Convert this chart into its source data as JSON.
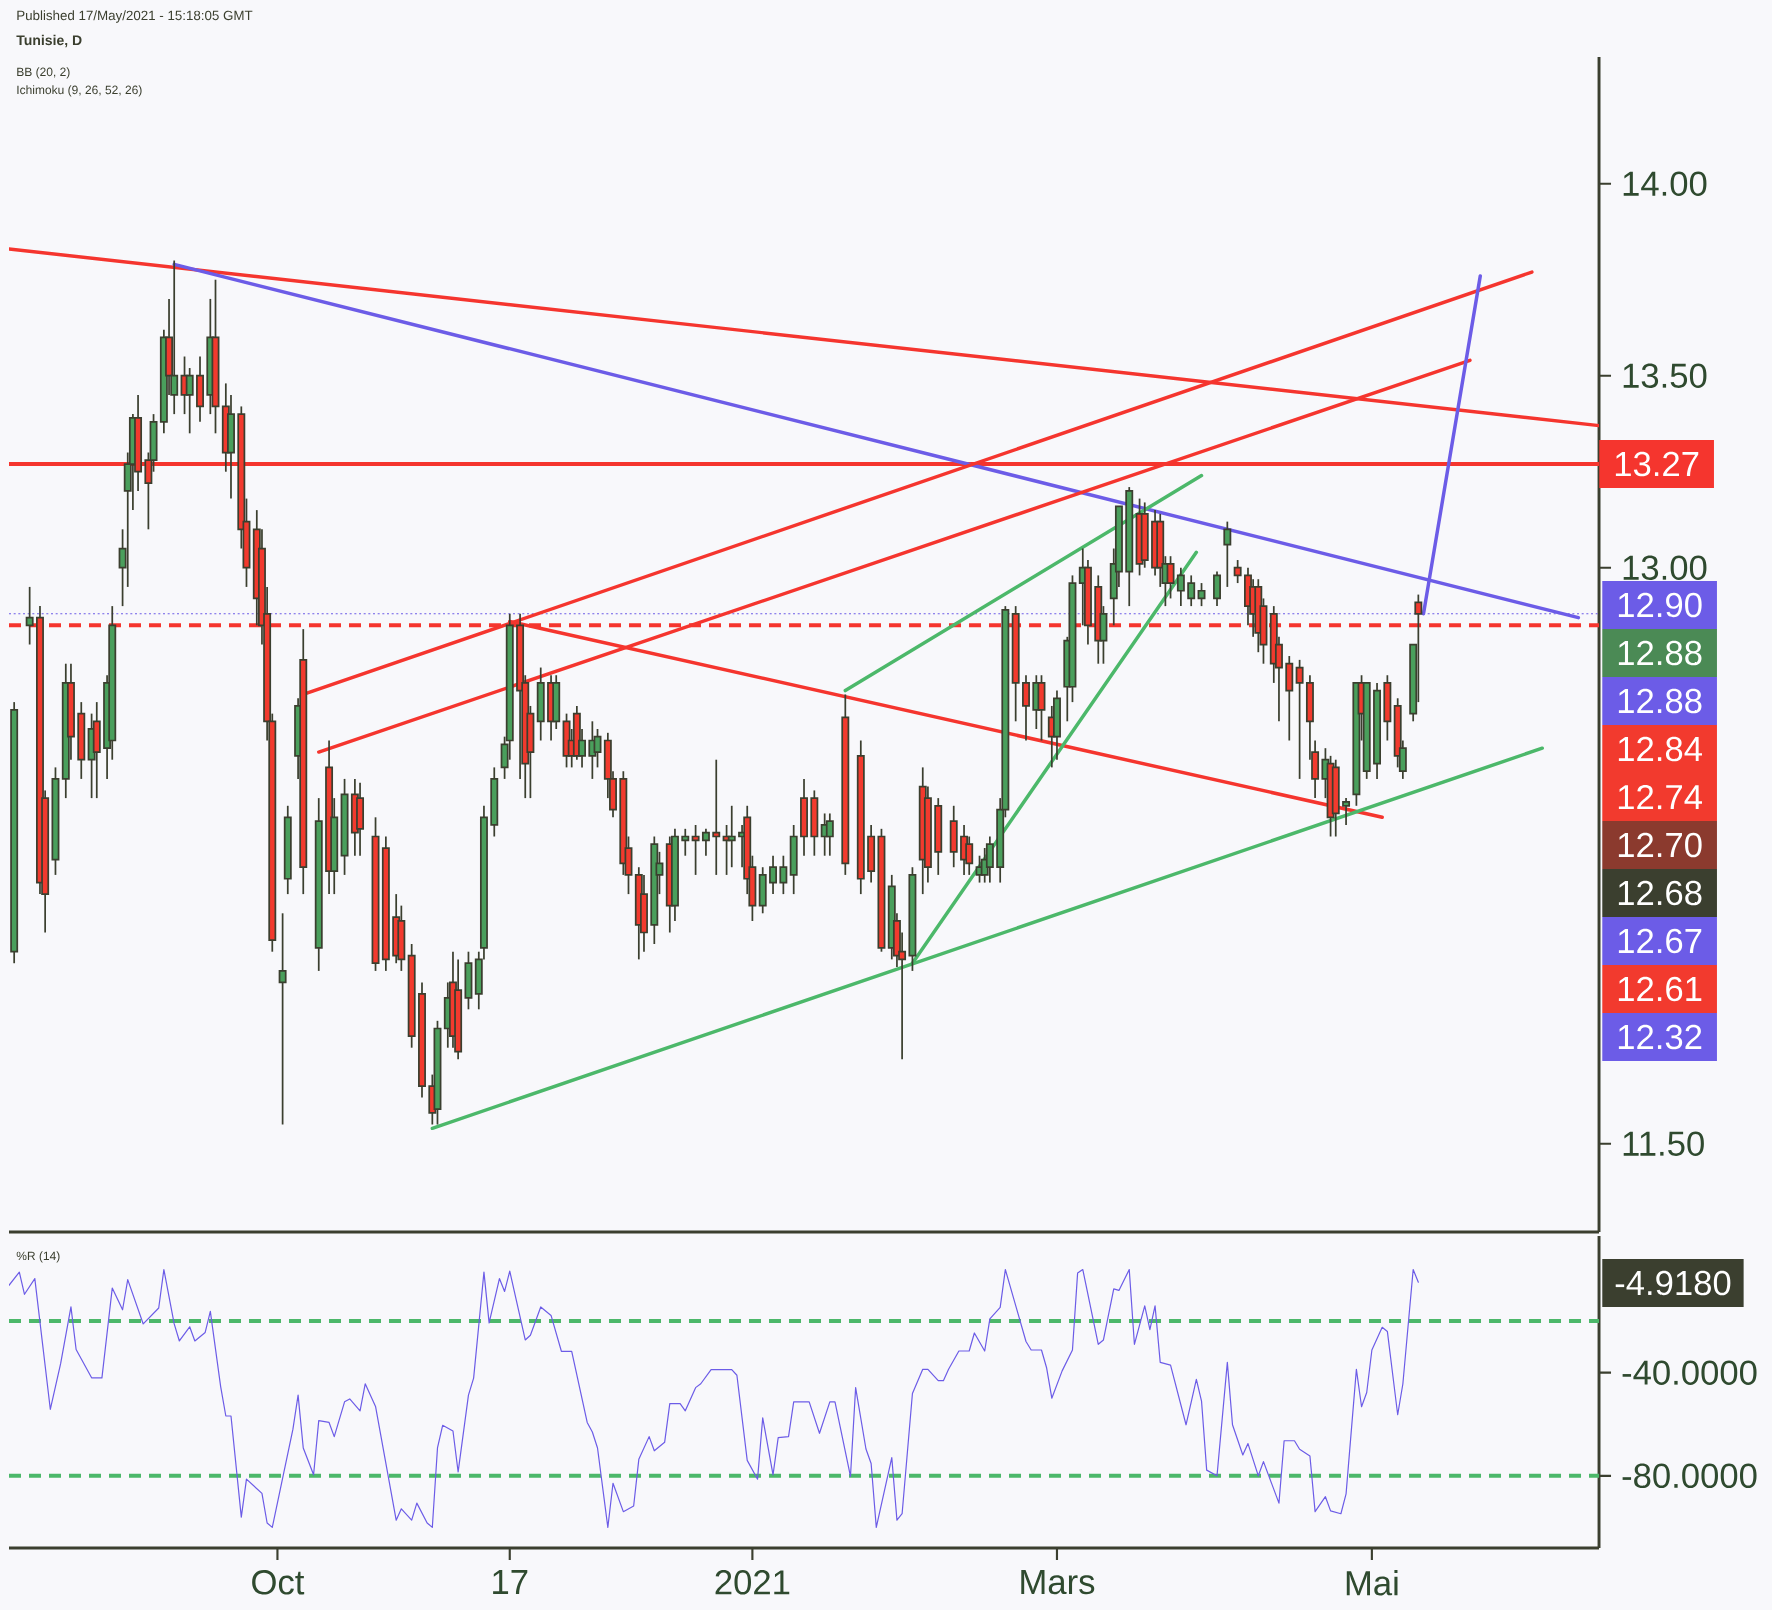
{
  "chart_data": [
    {
      "type": "candlestick",
      "title": "Tunisie, D",
      "annotations": [
        "Published 17/May/2021 - 15:18:05 GMT",
        "BB (20, 2)",
        "Ichimoku (9, 26, 52, 26)",
        "12.90",
        "12.88",
        "12.88",
        "12.84",
        "12.74",
        "12.70",
        "12.68",
        "12.67",
        "12.61",
        "12.32"
      ],
      "x": [
        "2020-08-11",
        "2020-08-14",
        "2020-08-16",
        "2020-08-17",
        "2020-08-19",
        "2020-08-21",
        "2020-08-22",
        "2020-08-24",
        "2020-08-26",
        "2020-08-27",
        "2020-08-29",
        "2020-08-30",
        "2020-09-01",
        "2020-09-02",
        "2020-09-03",
        "2020-09-04",
        "2020-09-06",
        "2020-09-07",
        "2020-09-09",
        "2020-09-10",
        "2020-09-11",
        "2020-09-13",
        "2020-09-14",
        "2020-09-16",
        "2020-09-18",
        "2020-09-19",
        "2020-09-21",
        "2020-09-22",
        "2020-09-24",
        "2020-09-25",
        "2020-09-27",
        "2020-09-28",
        "2020-09-29",
        "2020-09-30",
        "2020-10-02",
        "2020-10-03",
        "2020-10-05",
        "2020-10-06",
        "2020-10-09",
        "2020-10-11",
        "2020-10-12",
        "2020-10-14",
        "2020-10-16",
        "2020-10-17",
        "2020-10-20",
        "2020-10-22",
        "2020-10-24",
        "2020-10-25",
        "2020-10-27",
        "2020-10-29",
        "2020-10-31",
        "2020-11-01",
        "2020-11-03",
        "2020-11-04",
        "2020-11-05",
        "2020-11-07",
        "2020-11-09",
        "2020-11-10",
        "2020-11-12",
        "2020-11-14",
        "2020-11-15",
        "2020-11-17",
        "2020-11-18",
        "2020-11-19",
        "2020-11-21",
        "2020-11-23",
        "2020-11-24",
        "2020-11-26",
        "2020-11-27",
        "2020-11-28",
        "2020-11-29",
        "2020-12-01",
        "2020-12-02",
        "2020-12-04",
        "2020-12-05",
        "2020-12-07",
        "2020-12-08",
        "2020-12-10",
        "2020-12-11",
        "2020-12-13",
        "2020-12-14",
        "2020-12-16",
        "2020-12-17",
        "2020-12-19",
        "2020-12-21",
        "2020-12-23",
        "2020-12-25",
        "2020-12-27",
        "2020-12-28",
        "2020-12-30",
        "2020-12-31",
        "2021-01-01",
        "2021-01-03",
        "2021-01-05",
        "2021-01-07",
        "2021-01-09",
        "2021-01-11",
        "2021-01-13",
        "2021-01-15",
        "2021-01-16",
        "2021-01-19",
        "2021-01-22",
        "2021-01-24",
        "2021-01-26",
        "2021-01-28",
        "2021-01-29",
        "2021-01-30",
        "2021-02-01",
        "2021-02-03",
        "2021-02-04",
        "2021-02-06",
        "2021-02-09",
        "2021-02-11",
        "2021-02-12",
        "2021-02-14",
        "2021-02-15",
        "2021-02-16",
        "2021-02-18",
        "2021-02-19",
        "2021-02-21",
        "2021-02-23",
        "2021-02-25",
        "2021-02-26",
        "2021-02-28",
        "2021-03-01",
        "2021-03-03",
        "2021-03-04",
        "2021-03-06",
        "2021-03-07",
        "2021-03-09",
        "2021-03-10",
        "2021-03-12",
        "2021-03-13",
        "2021-03-15",
        "2021-03-17",
        "2021-03-18",
        "2021-03-20",
        "2021-03-21",
        "2021-03-22",
        "2021-03-23",
        "2021-03-25",
        "2021-03-27",
        "2021-03-29",
        "2021-04-01",
        "2021-04-03",
        "2021-04-05",
        "2021-04-07",
        "2021-04-08",
        "2021-04-09",
        "2021-04-10",
        "2021-04-12",
        "2021-04-13",
        "2021-04-15",
        "2021-04-17",
        "2021-04-19",
        "2021-04-20",
        "2021-04-22",
        "2021-04-23",
        "2021-04-24",
        "2021-04-26",
        "2021-04-28",
        "2021-04-29",
        "2021-04-30",
        "2021-05-02",
        "2021-05-04",
        "2021-05-06",
        "2021-05-07",
        "2021-05-09",
        "2021-05-10"
      ],
      "ohlc": [
        [
          12.0,
          12.65,
          11.97,
          12.63
        ],
        [
          12.85,
          12.95,
          12.8,
          12.87
        ],
        [
          12.87,
          12.9,
          12.15,
          12.18
        ],
        [
          12.4,
          12.42,
          12.05,
          12.15
        ],
        [
          12.24,
          12.48,
          12.2,
          12.45
        ],
        [
          12.45,
          12.75,
          12.4,
          12.7
        ],
        [
          12.7,
          12.75,
          12.5,
          12.56
        ],
        [
          12.62,
          12.65,
          12.45,
          12.5
        ],
        [
          12.5,
          12.62,
          12.4,
          12.58
        ],
        [
          12.6,
          12.65,
          12.4,
          12.52
        ],
        [
          12.53,
          12.72,
          12.45,
          12.7
        ],
        [
          12.55,
          12.9,
          12.5,
          12.85
        ],
        [
          13.0,
          13.1,
          12.9,
          13.05
        ],
        [
          13.2,
          13.3,
          12.95,
          13.27
        ],
        [
          13.27,
          13.4,
          13.15,
          13.39
        ],
        [
          13.39,
          13.45,
          13.2,
          13.25
        ],
        [
          13.28,
          13.3,
          13.1,
          13.22
        ],
        [
          13.28,
          13.4,
          13.25,
          13.38
        ],
        [
          13.38,
          13.62,
          13.35,
          13.6
        ],
        [
          13.6,
          13.7,
          13.45,
          13.5
        ],
        [
          13.45,
          13.8,
          13.4,
          13.5
        ],
        [
          13.5,
          13.55,
          13.4,
          13.45
        ],
        [
          13.45,
          13.52,
          13.35,
          13.5
        ],
        [
          13.5,
          13.55,
          13.38,
          13.42
        ],
        [
          13.45,
          13.7,
          13.4,
          13.6
        ],
        [
          13.6,
          13.75,
          13.35,
          13.42
        ],
        [
          13.42,
          13.48,
          13.25,
          13.3
        ],
        [
          13.3,
          13.45,
          13.18,
          13.4
        ],
        [
          13.4,
          13.42,
          13.05,
          13.1
        ],
        [
          13.12,
          13.18,
          12.95,
          13.0
        ],
        [
          13.1,
          13.15,
          12.85,
          12.92
        ],
        [
          13.05,
          13.1,
          12.8,
          12.85
        ],
        [
          12.88,
          12.95,
          12.55,
          12.6
        ],
        [
          12.6,
          12.62,
          12.0,
          12.03
        ],
        [
          11.92,
          12.1,
          11.55,
          11.95
        ],
        [
          12.19,
          12.38,
          12.15,
          12.35
        ],
        [
          12.51,
          12.66,
          12.45,
          12.64
        ],
        [
          12.76,
          12.84,
          12.15,
          12.22
        ],
        [
          12.01,
          12.4,
          11.95,
          12.34
        ],
        [
          12.48,
          12.55,
          12.15,
          12.21
        ],
        [
          12.21,
          12.4,
          12.15,
          12.35
        ],
        [
          12.25,
          12.45,
          12.2,
          12.41
        ],
        [
          12.41,
          12.45,
          12.25,
          12.31
        ],
        [
          12.4,
          12.44,
          12.25,
          12.32
        ],
        [
          12.3,
          12.35,
          11.95,
          11.97
        ],
        [
          12.27,
          12.3,
          11.95,
          11.98
        ],
        [
          12.09,
          12.15,
          11.97,
          11.99
        ],
        [
          12.08,
          12.12,
          11.95,
          11.98
        ],
        [
          11.99,
          12.02,
          11.75,
          11.78
        ],
        [
          11.89,
          11.92,
          11.62,
          11.65
        ],
        [
          11.65,
          11.68,
          11.55,
          11.58
        ],
        [
          11.59,
          11.82,
          11.55,
          11.8
        ],
        [
          11.8,
          11.92,
          11.75,
          11.88
        ],
        [
          11.92,
          12.0,
          11.75,
          11.78
        ],
        [
          11.9,
          11.98,
          11.72,
          11.74
        ],
        [
          11.88,
          12.0,
          11.85,
          11.97
        ],
        [
          11.89,
          12.0,
          11.85,
          11.98
        ],
        [
          12.01,
          12.38,
          11.98,
          12.35
        ],
        [
          12.33,
          12.48,
          12.3,
          12.45
        ],
        [
          12.48,
          12.56,
          12.45,
          12.54
        ],
        [
          12.55,
          12.88,
          12.5,
          12.85
        ],
        [
          12.85,
          12.88,
          12.45,
          12.68
        ],
        [
          12.7,
          12.72,
          12.4,
          12.49
        ],
        [
          12.62,
          12.64,
          12.4,
          12.52
        ],
        [
          12.6,
          12.74,
          12.55,
          12.7
        ],
        [
          12.7,
          12.72,
          12.55,
          12.6
        ],
        [
          12.6,
          12.72,
          12.58,
          12.7
        ],
        [
          12.6,
          12.62,
          12.48,
          12.51
        ],
        [
          12.55,
          12.58,
          12.48,
          12.51
        ],
        [
          12.62,
          12.64,
          12.5,
          12.51
        ],
        [
          12.51,
          12.58,
          12.48,
          12.55
        ],
        [
          12.51,
          12.6,
          12.45,
          12.55
        ],
        [
          12.52,
          12.58,
          12.48,
          12.56
        ],
        [
          12.55,
          12.57,
          12.4,
          12.45
        ],
        [
          12.45,
          12.47,
          12.35,
          12.37
        ],
        [
          12.45,
          12.47,
          12.2,
          12.23
        ],
        [
          12.27,
          12.3,
          12.15,
          12.2
        ],
        [
          12.2,
          12.22,
          11.98,
          12.07
        ],
        [
          12.15,
          12.2,
          12.0,
          12.05
        ],
        [
          12.07,
          12.3,
          12.02,
          12.28
        ],
        [
          12.2,
          12.26,
          12.15,
          12.23
        ],
        [
          12.28,
          12.3,
          12.05,
          12.12
        ],
        [
          12.12,
          12.32,
          12.08,
          12.3
        ],
        [
          12.29,
          12.32,
          12.25,
          12.3
        ],
        [
          12.3,
          12.33,
          12.2,
          12.29
        ],
        [
          12.29,
          12.32,
          12.25,
          12.31
        ],
        [
          12.31,
          12.5,
          12.2,
          12.3
        ],
        [
          12.3,
          12.33,
          12.2,
          12.29
        ],
        [
          12.29,
          12.38,
          12.22,
          12.3
        ],
        [
          12.3,
          12.33,
          12.22,
          12.31
        ],
        [
          12.35,
          12.38,
          12.15,
          12.19
        ],
        [
          12.22,
          12.25,
          12.08,
          12.12
        ],
        [
          12.12,
          12.22,
          12.1,
          12.2
        ],
        [
          12.18,
          12.25,
          12.15,
          12.22
        ],
        [
          12.18,
          12.25,
          12.15,
          12.22
        ],
        [
          12.2,
          12.33,
          12.15,
          12.3
        ],
        [
          12.4,
          12.45,
          12.25,
          12.3
        ],
        [
          12.4,
          12.42,
          12.25,
          12.3
        ],
        [
          12.3,
          12.36,
          12.25,
          12.33
        ],
        [
          12.3,
          12.36,
          12.25,
          12.34
        ],
        [
          12.61,
          12.67,
          12.2,
          12.23
        ],
        [
          12.51,
          12.55,
          12.15,
          12.19
        ],
        [
          12.3,
          12.33,
          12.18,
          12.21
        ],
        [
          12.3,
          12.32,
          12.0,
          12.01
        ],
        [
          12.01,
          12.2,
          11.98,
          12.17
        ],
        [
          12.08,
          12.1,
          11.96,
          11.99
        ],
        [
          12.0,
          12.05,
          11.72,
          11.98
        ],
        [
          11.99,
          12.22,
          11.95,
          12.2
        ],
        [
          12.43,
          12.48,
          12.15,
          12.24
        ],
        [
          12.4,
          12.43,
          12.18,
          12.22
        ],
        [
          12.38,
          12.4,
          12.2,
          12.26
        ],
        [
          12.34,
          12.38,
          12.22,
          12.26
        ],
        [
          12.3,
          12.33,
          12.2,
          12.24
        ],
        [
          12.28,
          12.3,
          12.2,
          12.23
        ],
        [
          12.2,
          12.25,
          12.18,
          12.22
        ],
        [
          12.2,
          12.27,
          12.18,
          12.24
        ],
        [
          12.22,
          12.3,
          12.18,
          12.28
        ],
        [
          12.22,
          12.4,
          12.18,
          12.37
        ],
        [
          12.37,
          12.9,
          12.35,
          12.89
        ],
        [
          12.88,
          12.9,
          12.6,
          12.7
        ],
        [
          12.7,
          12.72,
          12.55,
          12.64
        ],
        [
          12.63,
          12.72,
          12.58,
          12.7
        ],
        [
          12.7,
          12.72,
          12.55,
          12.63
        ],
        [
          12.61,
          12.64,
          12.48,
          12.56
        ],
        [
          12.56,
          12.68,
          12.5,
          12.66
        ],
        [
          12.69,
          12.82,
          12.6,
          12.81
        ],
        [
          12.69,
          12.98,
          12.65,
          12.96
        ],
        [
          12.96,
          13.05,
          12.85,
          13.0
        ],
        [
          13.0,
          13.02,
          12.8,
          12.85
        ],
        [
          12.95,
          12.98,
          12.75,
          12.81
        ],
        [
          12.81,
          12.9,
          12.75,
          12.88
        ],
        [
          12.92,
          13.05,
          12.85,
          13.01
        ],
        [
          12.99,
          13.16,
          12.95,
          13.16
        ],
        [
          12.99,
          13.21,
          12.9,
          13.2
        ],
        [
          13.14,
          13.18,
          12.98,
          13.01
        ],
        [
          13.14,
          13.17,
          13.0,
          13.02
        ],
        [
          13.12,
          13.15,
          12.98,
          13.0
        ],
        [
          13.12,
          13.14,
          12.95,
          13.0
        ],
        [
          12.96,
          13.03,
          12.9,
          13.01
        ],
        [
          13.01,
          13.03,
          12.92,
          12.96
        ],
        [
          12.94,
          13.0,
          12.9,
          12.98
        ],
        [
          12.92,
          12.98,
          12.9,
          12.96
        ],
        [
          12.92,
          12.96,
          12.9,
          12.94
        ],
        [
          12.92,
          12.99,
          12.9,
          12.98
        ],
        [
          13.06,
          13.12,
          12.95,
          13.1
        ],
        [
          13.0,
          13.02,
          12.96,
          12.98
        ],
        [
          12.98,
          13.0,
          12.85,
          12.9
        ],
        [
          12.95,
          12.97,
          12.82,
          12.88
        ],
        [
          12.95,
          12.97,
          12.78,
          12.83
        ],
        [
          12.9,
          12.92,
          12.75,
          12.8
        ],
        [
          12.88,
          12.9,
          12.7,
          12.75
        ],
        [
          12.8,
          12.82,
          12.6,
          12.74
        ],
        [
          12.75,
          12.77,
          12.55,
          12.68
        ],
        [
          12.74,
          12.76,
          12.45,
          12.7
        ],
        [
          12.7,
          12.72,
          12.5,
          12.6
        ],
        [
          12.52,
          12.55,
          12.4,
          12.45
        ],
        [
          12.45,
          12.53,
          12.4,
          12.5
        ],
        [
          12.49,
          12.51,
          12.3,
          12.35
        ],
        [
          12.48,
          12.5,
          12.3,
          12.36
        ],
        [
          12.38,
          12.4,
          12.33,
          12.39
        ],
        [
          12.41,
          12.7,
          12.38,
          12.7
        ],
        [
          12.7,
          12.72,
          12.55,
          12.62
        ],
        [
          12.47,
          12.7,
          12.45,
          12.7
        ],
        [
          12.49,
          12.7,
          12.45,
          12.68
        ],
        [
          12.7,
          12.72,
          12.55,
          12.6
        ],
        [
          12.64,
          12.66,
          12.48,
          12.51
        ],
        [
          12.47,
          12.55,
          12.45,
          12.53
        ],
        [
          12.62,
          12.8,
          12.6,
          12.8
        ],
        [
          12.91,
          12.93,
          12.65,
          12.88
        ]
      ],
      "series": [
        {
          "type": "line",
          "x": [
            "2020-08-10",
            "2021-06-14"
          ],
          "values": [
            13.83,
            13.37
          ],
          "color": "#f5352e"
        },
        {
          "type": "line",
          "x": [
            "2020-09-11",
            "2021-06-10"
          ],
          "values": [
            13.79,
            12.87
          ],
          "color": "#6c5ce7"
        },
        {
          "type": "line",
          "x": [
            "2020-10-06",
            "2021-06-01"
          ],
          "values": [
            12.67,
            13.77
          ],
          "color": "#f5352e"
        },
        {
          "type": "line",
          "x": [
            "2020-10-09",
            "2021-05-20"
          ],
          "values": [
            12.52,
            13.54
          ],
          "color": "#f5352e"
        },
        {
          "type": "line",
          "x": [
            "2020-11-15",
            "2021-05-03"
          ],
          "values": [
            12.86,
            12.35
          ],
          "color": "#f5352e"
        },
        {
          "type": "line",
          "x": [
            "2020-10-31",
            "2021-06-03"
          ],
          "values": [
            11.54,
            12.53
          ],
          "color": "#4cb86a"
        },
        {
          "type": "line",
          "x": [
            "2021-01-19",
            "2021-03-29"
          ],
          "values": [
            12.68,
            13.24
          ],
          "color": "#4cb86a"
        },
        {
          "type": "line",
          "x": [
            "2021-02-01",
            "2021-03-28"
          ],
          "values": [
            11.97,
            13.04
          ],
          "color": "#4cb86a"
        },
        {
          "type": "line",
          "x": [
            "2021-05-11",
            "2021-05-22"
          ],
          "values": [
            12.88,
            13.76
          ],
          "color": "#6c5ce7"
        }
      ],
      "ref_lines": [
        {
          "axis": "y",
          "value": 13.27,
          "label": "13.27",
          "color": "#f5352e",
          "line_style": "solid"
        },
        {
          "axis": "y",
          "value": 12.85,
          "color": "#f5352e",
          "line_style": "dashed"
        },
        {
          "axis": "y",
          "value": 12.88,
          "color": "#6c5ce7",
          "line_style": "dotted"
        }
      ],
      "xlim": [
        "2020-08-10",
        "2021-06-14"
      ],
      "ylim": [
        11.27,
        14.33
      ],
      "yticks": [
        {
          "value": 14,
          "label": "14.00"
        },
        {
          "value": 13.5,
          "label": "13.50"
        },
        {
          "value": 13,
          "label": "13.00"
        },
        {
          "value": 11.5,
          "label": "11.50"
        }
      ],
      "tick_labels": "y"
    },
    {
      "type": "line",
      "annotations": [
        "%R (14)",
        "-4.9180"
      ],
      "color": "#6c5ce7",
      "x": [
        "2020-08-10",
        "2020-08-12",
        "2020-08-13",
        "2020-08-15",
        "2020-08-18",
        "2020-08-20",
        "2020-08-22",
        "2020-08-23",
        "2020-08-26",
        "2020-08-28",
        "2020-08-30",
        "2020-09-01",
        "2020-09-02",
        "2020-09-05",
        "2020-09-08",
        "2020-09-09",
        "2020-09-11",
        "2020-09-12",
        "2020-09-14",
        "2020-09-15",
        "2020-09-17",
        "2020-09-18",
        "2020-09-20",
        "2020-09-21",
        "2020-09-22",
        "2020-09-24",
        "2020-09-25",
        "2020-09-28",
        "2020-09-29",
        "2020-09-30",
        "2020-10-04",
        "2020-10-05",
        "2020-10-06",
        "2020-10-08",
        "2020-10-09",
        "2020-10-11",
        "2020-10-12",
        "2020-10-14",
        "2020-10-15",
        "2020-10-17",
        "2020-10-18",
        "2020-10-20",
        "2020-10-24",
        "2020-10-25",
        "2020-10-27",
        "2020-10-28",
        "2020-10-30",
        "2020-10-31",
        "2020-11-01",
        "2020-11-02",
        "2020-11-04",
        "2020-11-05",
        "2020-11-07",
        "2020-11-08",
        "2020-11-10",
        "2020-11-11",
        "2020-11-13",
        "2020-11-14",
        "2020-11-15",
        "2020-11-18",
        "2020-11-19",
        "2020-11-21",
        "2020-11-23",
        "2020-11-25",
        "2020-11-27",
        "2020-11-30",
        "2020-12-01",
        "2020-12-02",
        "2020-12-04",
        "2020-12-05",
        "2020-12-07",
        "2020-12-09",
        "2020-12-10",
        "2020-12-12",
        "2020-12-13",
        "2020-12-15",
        "2020-12-16",
        "2020-12-18",
        "2020-12-19",
        "2020-12-21",
        "2020-12-22",
        "2020-12-24",
        "2020-12-28",
        "2020-12-29",
        "2020-12-31",
        "2021-01-02",
        "2021-01-03",
        "2021-01-05",
        "2021-01-06",
        "2021-01-08",
        "2021-01-09",
        "2021-01-12",
        "2021-01-14",
        "2021-01-16",
        "2021-01-17",
        "2021-01-20",
        "2021-01-21",
        "2021-01-23",
        "2021-01-24",
        "2021-01-25",
        "2021-01-28",
        "2021-01-29",
        "2021-01-30",
        "2021-02-01",
        "2021-02-03",
        "2021-02-04",
        "2021-02-06",
        "2021-02-07",
        "2021-02-08",
        "2021-02-10",
        "2021-02-12",
        "2021-02-13",
        "2021-02-15",
        "2021-02-16",
        "2021-02-18",
        "2021-02-19",
        "2021-02-23",
        "2021-02-24",
        "2021-02-26",
        "2021-02-27",
        "2021-02-28",
        "2021-03-02",
        "2021-03-04",
        "2021-03-05",
        "2021-03-06",
        "2021-03-09",
        "2021-03-10",
        "2021-03-12",
        "2021-03-13",
        "2021-03-15",
        "2021-03-16",
        "2021-03-18",
        "2021-03-19",
        "2021-03-20",
        "2021-03-21",
        "2021-03-23",
        "2021-03-26",
        "2021-03-28",
        "2021-03-29",
        "2021-03-30",
        "2021-04-01",
        "2021-04-03",
        "2021-04-04",
        "2021-04-06",
        "2021-04-07",
        "2021-04-09",
        "2021-04-10",
        "2021-04-13",
        "2021-04-14",
        "2021-04-16",
        "2021-04-17",
        "2021-04-19",
        "2021-04-20",
        "2021-04-22",
        "2021-04-23",
        "2021-04-25",
        "2021-04-26",
        "2021-04-28",
        "2021-04-29",
        "2021-04-30",
        "2021-05-01",
        "2021-05-03",
        "2021-05-04",
        "2021-05-06",
        "2021-05-07",
        "2021-05-09",
        "2021-05-10"
      ],
      "values": [
        -6.1,
        -1,
        -9.6,
        -3.5,
        -54.2,
        -36.5,
        -14.5,
        -31,
        -42,
        -42,
        -7.2,
        -15.6,
        -3.9,
        -21.1,
        -14.9,
        0,
        -21.1,
        -27.7,
        -22.2,
        -27.7,
        -24.4,
        -16.2,
        -45.4,
        -56.8,
        -56.8,
        -96,
        -81.3,
        -86.8,
        -98.3,
        -100,
        -61.9,
        -48.7,
        -69.2,
        -79.6,
        -58.6,
        -59.3,
        -64.8,
        -51.3,
        -50.2,
        -54.8,
        -44.3,
        -53.1,
        -97.2,
        -92.8,
        -97.2,
        -90.6,
        -98.3,
        -100,
        -69.2,
        -60.4,
        -62.6,
        -78.5,
        -48.7,
        -42.1,
        -1,
        -20.7,
        -3.5,
        -8.5,
        -0.6,
        -27.3,
        -25.5,
        -14.5,
        -17.8,
        -31.7,
        -31.7,
        -59.3,
        -63,
        -69.2,
        -100,
        -82.9,
        -93.9,
        -91.7,
        -73.6,
        -64.8,
        -70.3,
        -67,
        -52,
        -52,
        -54.8,
        -45.8,
        -44.3,
        -38.8,
        -38.8,
        -41,
        -74,
        -81.3,
        -57.5,
        -79.6,
        -65.2,
        -64.8,
        -51.3,
        -51.3,
        -63.5,
        -51.3,
        -51.3,
        -80.2,
        -45.8,
        -69.6,
        -75.2,
        -100,
        -72.9,
        -97.2,
        -94.7,
        -48.1,
        -38.7,
        -38.7,
        -43.1,
        -43.1,
        -38.7,
        -31.6,
        -31.6,
        -24.6,
        -31.6,
        -19.1,
        -14.7,
        0,
        -27.9,
        -31.2,
        -31.2,
        -38.2,
        -49.9,
        -39.3,
        -31.2,
        -1.3,
        0,
        -29,
        -27.3,
        -7.5,
        -8.1,
        0,
        -29,
        -14.1,
        -23.3,
        -14.1,
        -36,
        -37.1,
        -60.2,
        -42.6,
        -51,
        -77.8,
        -80,
        -36,
        -60.2,
        -71.9,
        -67.5,
        -80,
        -74.5,
        -90.6,
        -66.4,
        -66.4,
        -69.7,
        -72.3,
        -93.9,
        -88.1,
        -93.6,
        -94.7,
        -87,
        -38.7,
        -53.2,
        -47.7,
        -31.2,
        -22.4,
        -24,
        -56.3,
        -44.4,
        0,
        -4.918
      ],
      "ref_lines": [
        {
          "axis": "y",
          "value": -20,
          "color": "#4cb86a",
          "line_style": "dashed"
        },
        {
          "axis": "y",
          "value": -80,
          "color": "#4cb86a",
          "line_style": "dashed"
        }
      ],
      "xlim": [
        "2020-08-10",
        "2021-06-14"
      ],
      "ylim": [
        -108,
        13
      ],
      "xticks": [
        {
          "value": "2020-10-01",
          "label": "Oct"
        },
        {
          "value": "2020-11-15",
          "label": "17"
        },
        {
          "value": "2021-01-01",
          "label": "2021"
        },
        {
          "value": "2021-03-01",
          "label": "Mars"
        },
        {
          "value": "2021-05-01",
          "label": "Mai"
        }
      ],
      "yticks": [
        {
          "value": -40,
          "label": "-40.0000"
        },
        {
          "value": -80,
          "label": "-80.0000"
        }
      ]
    }
  ]
}
